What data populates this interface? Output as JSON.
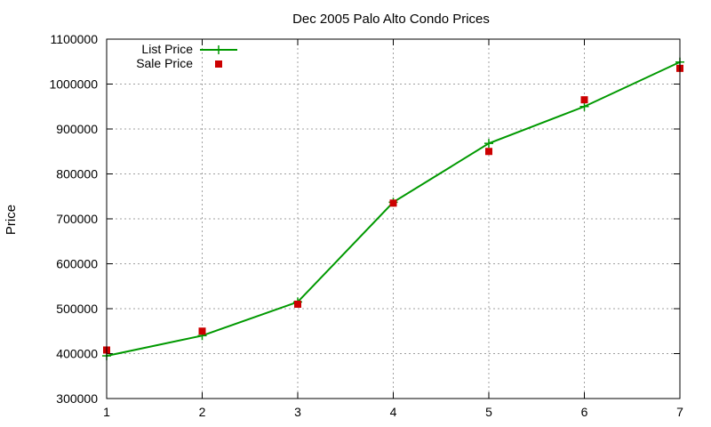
{
  "chart_data": {
    "type": "line",
    "title": "Dec 2005 Palo Alto Condo Prices",
    "xlabel": "",
    "ylabel": "Price",
    "xlim": [
      1,
      7
    ],
    "ylim": [
      300000,
      1100000
    ],
    "x_ticks": [
      1,
      2,
      3,
      4,
      5,
      6,
      7
    ],
    "y_ticks": [
      300000,
      400000,
      500000,
      600000,
      700000,
      800000,
      900000,
      1000000,
      1100000
    ],
    "grid": true,
    "legend_position": "top-left",
    "series": [
      {
        "name": "List Price",
        "style": "line-points",
        "color": "#009900",
        "x": [
          1,
          2,
          3,
          4,
          5,
          6,
          7
        ],
        "y": [
          395000,
          440000,
          515000,
          737000,
          868000,
          950000,
          1049000
        ]
      },
      {
        "name": "Sale Price",
        "style": "points",
        "color": "#cc0000",
        "x": [
          1,
          2,
          3,
          4,
          5,
          6,
          7
        ],
        "y": [
          408000,
          450000,
          510000,
          735000,
          850000,
          965000,
          1035000
        ]
      }
    ]
  }
}
